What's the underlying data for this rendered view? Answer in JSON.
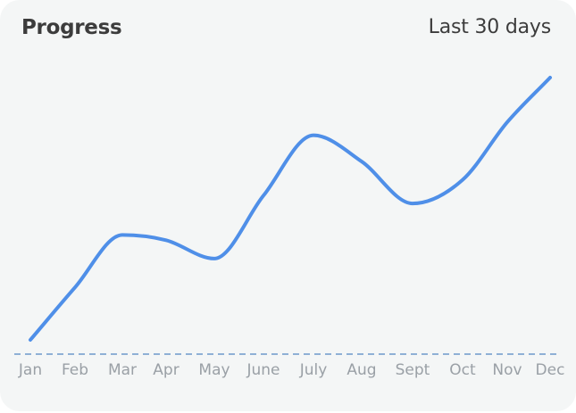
{
  "header": {
    "title": "Progress",
    "range_label": "Last 30 days"
  },
  "chart_data": {
    "type": "line",
    "title": "Progress",
    "x": [
      "Jan",
      "Feb",
      "Mar",
      "Apr",
      "May",
      "June",
      "July",
      "Aug",
      "Sept",
      "Oct",
      "Nov",
      "Dec"
    ],
    "series": [
      {
        "values": [
          0,
          20,
          40,
          38,
          31,
          55,
          78,
          68,
          52,
          61,
          83,
          100
        ]
      }
    ],
    "ylim": [
      0,
      100
    ],
    "grid": false,
    "baseline": "dashed",
    "line_color": "#4f8fe8",
    "baseline_color": "#8fb0d6"
  }
}
